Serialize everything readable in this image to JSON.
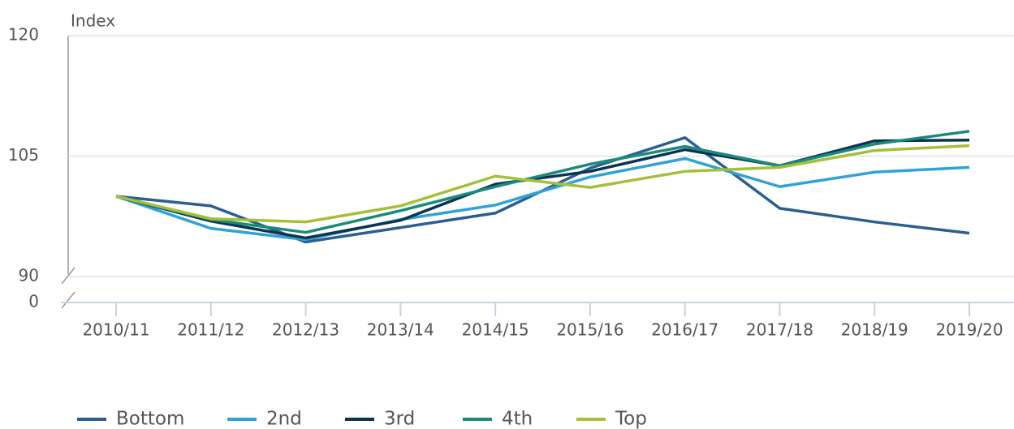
{
  "chart_data": {
    "type": "line",
    "y_label": "Index",
    "categories": [
      "2010/11",
      "2011/12",
      "2012/13",
      "2013/14",
      "2014/15",
      "2015/16",
      "2016/17",
      "2017/18",
      "2018/19",
      "2019/20"
    ],
    "series": [
      {
        "name": "Bottom",
        "color": "#2a5f8f",
        "values": [
          100,
          98.8,
          94.3,
          96.1,
          97.9,
          103.5,
          107.3,
          98.5,
          96.8,
          95.4
        ]
      },
      {
        "name": "2nd",
        "color": "#2fa3d4",
        "values": [
          100,
          96,
          94.6,
          97.1,
          98.9,
          102.4,
          104.7,
          101.2,
          103,
          103.6
        ]
      },
      {
        "name": "3rd",
        "color": "#0b3352",
        "values": [
          100,
          96.9,
          94.8,
          97,
          101.5,
          103.1,
          105.8,
          103.8,
          106.9,
          107
        ]
      },
      {
        "name": "4th",
        "color": "#1a8a7a",
        "values": [
          100,
          97.1,
          95.5,
          98.2,
          101.2,
          104,
          106.2,
          103.8,
          106.5,
          108.1
        ]
      },
      {
        "name": "Top",
        "color": "#a5bf3a",
        "values": [
          100,
          97.2,
          96.8,
          98.8,
          102.5,
          101.1,
          103.1,
          103.6,
          105.7,
          106.3
        ]
      }
    ],
    "ylim": [
      0,
      120
    ],
    "yticks": [
      0,
      90,
      105,
      120
    ],
    "axis_break": [
      0,
      90
    ],
    "grid": true,
    "legend": "bottom"
  }
}
